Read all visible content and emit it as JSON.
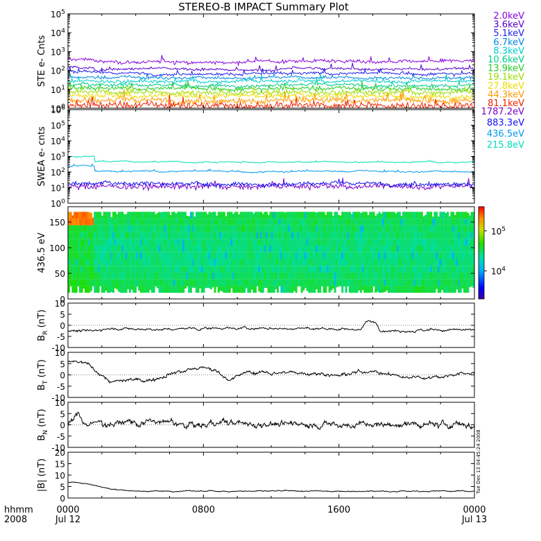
{
  "title": "STEREO-B IMPACT Summary Plot",
  "timestamp": "Tue Dec 13 04:45:24 2008",
  "time_axis": {
    "label_lines": [
      "hhmm",
      "2008"
    ],
    "ticks": [
      {
        "time": "0000",
        "date": "Jul 12"
      },
      {
        "time": "0800",
        "date": ""
      },
      {
        "time": "1600",
        "date": ""
      },
      {
        "time": "0000",
        "date": "Jul 13"
      }
    ]
  },
  "chart_data": [
    {
      "id": "ste",
      "type": "line",
      "ylabel": "STE e- Cnts",
      "yscale": "log",
      "ylim": [
        1,
        100000
      ],
      "yticks": [
        {
          "v": 1,
          "base": "10",
          "exp": "0"
        },
        {
          "v": 10,
          "base": "10",
          "exp": "1"
        },
        {
          "v": 100,
          "base": "10",
          "exp": "2"
        },
        {
          "v": 1000,
          "base": "10",
          "exp": "3"
        },
        {
          "v": 10000,
          "base": "10",
          "exp": "4"
        },
        {
          "v": 100000,
          "base": "10",
          "exp": "5"
        }
      ],
      "x_hours": [
        0,
        24
      ],
      "series": [
        {
          "name": "2.0keV",
          "color": "#8800dd",
          "level": 300,
          "noise": 0.1,
          "spike": 0.5
        },
        {
          "name": "3.6keV",
          "color": "#5500cc",
          "level": 120,
          "noise": 0.08,
          "spike": 0.4
        },
        {
          "name": "5.1keV",
          "color": "#2222ee",
          "level": 70,
          "noise": 0.08,
          "spike": 0.4
        },
        {
          "name": "6.7keV",
          "color": "#0088dd",
          "level": 42,
          "noise": 0.08,
          "spike": 0.4
        },
        {
          "name": "8.3keV",
          "color": "#00cccc",
          "level": 27,
          "noise": 0.09,
          "spike": 0.5
        },
        {
          "name": "10.6keV",
          "color": "#00cc88",
          "level": 17,
          "noise": 0.1,
          "spike": 0.5
        },
        {
          "name": "13.9keV",
          "color": "#22cc22",
          "level": 11,
          "noise": 0.12,
          "spike": 0.6
        },
        {
          "name": "19.1keV",
          "color": "#99dd00",
          "level": 7,
          "noise": 0.14,
          "spike": 0.6
        },
        {
          "name": "27.8keV",
          "color": "#eedd00",
          "level": 4.5,
          "noise": 0.16,
          "spike": 0.7
        },
        {
          "name": "44.3keV",
          "color": "#ff9900",
          "level": 2.6,
          "noise": 0.2,
          "spike": 0.8
        },
        {
          "name": "81.1keV",
          "color": "#ee2200",
          "level": 1.4,
          "noise": 0.25,
          "spike": 0.9
        }
      ]
    },
    {
      "id": "swea",
      "type": "line",
      "ylabel": "SWEA e- cnts",
      "yscale": "log",
      "ylim": [
        1,
        1000000
      ],
      "yticks": [
        {
          "v": 1,
          "base": "10",
          "exp": "0"
        },
        {
          "v": 10,
          "base": "10",
          "exp": "1"
        },
        {
          "v": 100,
          "base": "10",
          "exp": "2"
        },
        {
          "v": 1000,
          "base": "10",
          "exp": "3"
        },
        {
          "v": 10000,
          "base": "10",
          "exp": "4"
        },
        {
          "v": 100000,
          "base": "10",
          "exp": "5"
        },
        {
          "v": 1000000,
          "base": "10",
          "exp": "6"
        }
      ],
      "x_hours": [
        0,
        24
      ],
      "series": [
        {
          "name": "1787.2eV",
          "color": "#7700cc",
          "level": 12,
          "noise": 0.22,
          "spike": 0.7
        },
        {
          "name": "883.3eV",
          "color": "#1111ee",
          "level": 18,
          "noise": 0.15,
          "spike": 0.4
        },
        {
          "name": "436.5eV",
          "color": "#0099ee",
          "level": 110,
          "noise": 0.04,
          "spike": 0.2
        },
        {
          "name": "215.8eV",
          "color": "#00ddbb",
          "level": 450,
          "noise": 0.03,
          "spike": 0.15
        }
      ]
    },
    {
      "id": "pad",
      "type": "heatmap",
      "ylabel": "436.5 eV",
      "ylim": [
        0,
        180
      ],
      "yticks": [
        0,
        50,
        100,
        150
      ],
      "x_hours": [
        0,
        24
      ],
      "colorbar": {
        "min": 2000,
        "max": 400000,
        "scale": "log",
        "ticks": [
          {
            "v": 10000,
            "base": "10",
            "exp": "4"
          },
          {
            "v": 100000,
            "base": "10",
            "exp": "5"
          }
        ]
      }
    },
    {
      "id": "br",
      "type": "line",
      "ylabel": {
        "main": "B",
        "sub": "R",
        "unit": " (nT)"
      },
      "ylim": [
        -10,
        10
      ],
      "yticks": [
        -10,
        -5,
        0,
        5,
        10
      ],
      "x_hours": [
        0,
        24
      ],
      "series": [
        {
          "color": "#000000",
          "keyframes": [
            [
              0,
              -2.5
            ],
            [
              1.5,
              -2.5
            ],
            [
              2.2,
              -1.5
            ],
            [
              3,
              -1.5
            ],
            [
              5,
              -2
            ],
            [
              9,
              -1.2
            ],
            [
              12,
              -1.5
            ],
            [
              15,
              -1.5
            ],
            [
              17.3,
              -1.8
            ],
            [
              17.6,
              1.5
            ],
            [
              18.2,
              1.5
            ],
            [
              18.4,
              -2
            ],
            [
              20,
              -2.3
            ],
            [
              24,
              -2.2
            ]
          ],
          "noise": 0.7
        }
      ]
    },
    {
      "id": "bt",
      "type": "line",
      "ylabel": {
        "main": "B",
        "sub": "T",
        "unit": " (nT)"
      },
      "ylim": [
        -10,
        10
      ],
      "yticks": [
        -10,
        -5,
        0,
        5,
        10
      ],
      "x_hours": [
        0,
        24
      ],
      "series": [
        {
          "color": "#000000",
          "keyframes": [
            [
              0,
              6
            ],
            [
              0.8,
              5.5
            ],
            [
              1.5,
              3
            ],
            [
              2.5,
              -3
            ],
            [
              4,
              -2.5
            ],
            [
              5,
              -2
            ],
            [
              6,
              1
            ],
            [
              8,
              3
            ],
            [
              9,
              1
            ],
            [
              9.5,
              -2
            ],
            [
              10.5,
              1
            ],
            [
              12,
              1
            ],
            [
              14,
              1
            ],
            [
              16,
              0
            ],
            [
              18,
              2
            ],
            [
              18.5,
              1
            ],
            [
              20,
              -1
            ],
            [
              22,
              -0.5
            ],
            [
              24,
              1
            ]
          ],
          "noise": 1.0
        }
      ]
    },
    {
      "id": "bn",
      "type": "line",
      "ylabel": {
        "main": "B",
        "sub": "N",
        "unit": " (nT)"
      },
      "ylim": [
        -10,
        10
      ],
      "yticks": [
        -10,
        -5,
        0,
        5,
        10
      ],
      "x_hours": [
        0,
        24
      ],
      "series": [
        {
          "color": "#000000",
          "keyframes": [
            [
              0,
              0
            ],
            [
              0.6,
              5
            ],
            [
              1,
              0
            ],
            [
              3,
              1.5
            ],
            [
              6,
              1
            ],
            [
              7,
              -0.5
            ],
            [
              9,
              0.5
            ],
            [
              12,
              0.5
            ],
            [
              16,
              0
            ],
            [
              20,
              0
            ],
            [
              24,
              0
            ]
          ],
          "noise": 1.8
        }
      ]
    },
    {
      "id": "bmag",
      "type": "line",
      "ylabel": "|B| (nT)",
      "ylim": [
        0,
        20
      ],
      "yticks": [
        0,
        5,
        10,
        15,
        20
      ],
      "x_hours": [
        0,
        24
      ],
      "series": [
        {
          "color": "#000000",
          "keyframes": [
            [
              0,
              7
            ],
            [
              1,
              6.5
            ],
            [
              2.5,
              4
            ],
            [
              4,
              3
            ],
            [
              12,
              3
            ],
            [
              24,
              3
            ]
          ],
          "noise": 0.3
        }
      ]
    }
  ]
}
